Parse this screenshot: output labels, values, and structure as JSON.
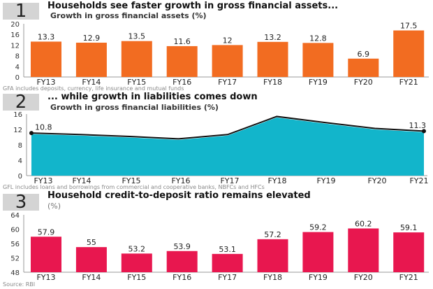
{
  "chart_data": [
    {
      "type": "bar",
      "panel_number": "1",
      "title": "Households see faster growth in gross financial assets...",
      "subtitle": "Growth in gross financial assets (%)",
      "categories": [
        "FY13",
        "FY14",
        "FY15",
        "FY16",
        "FY17",
        "FY18",
        "FY19",
        "FY20",
        "FY21"
      ],
      "values": [
        13.3,
        12.9,
        13.5,
        11.6,
        12,
        13.2,
        12.8,
        6.9,
        17.5
      ],
      "value_labels": [
        "13.3",
        "12.9",
        "13.5",
        "11.6",
        "12",
        "13.2",
        "12.8",
        "6.9",
        "17.5"
      ],
      "ylim": [
        0,
        20
      ],
      "yticks": [
        "0",
        "4",
        "8",
        "12",
        "16",
        "20"
      ],
      "grid": false,
      "color": "#f26c21",
      "note": "GFA includes deposits, currency, life insurance and mutual funds"
    },
    {
      "type": "area",
      "panel_number": "2",
      "title": "... while growth in liabilities comes down",
      "subtitle": "Growth in gross financial liabilities (%)",
      "categories": [
        "FY13",
        "FY14",
        "FY15",
        "FY16",
        "FY17",
        "FY18",
        "FY19",
        "FY20",
        "FY21"
      ],
      "values": [
        10.8,
        10.4,
        9.9,
        9.3,
        10.4,
        15.1,
        13.5,
        12.0,
        11.3
      ],
      "value_labels": {
        "first": "10.8",
        "last": "11.3"
      },
      "ylim": [
        0,
        16
      ],
      "yticks": [
        "0",
        "4",
        "8",
        "12",
        "16"
      ],
      "grid": false,
      "color": "#12b5cb",
      "line_color": "#111111",
      "note": "GFL includes loans and borrowings from commercial and cooperative banks, NBFCs and HFCs"
    },
    {
      "type": "bar",
      "panel_number": "3",
      "title": "Household credit-to-deposit ratio remains elevated",
      "subtitle": "(%)",
      "categories": [
        "FY13",
        "FY14",
        "FY15",
        "FY16",
        "FY17",
        "FY18",
        "FY19",
        "FY20",
        "FY21"
      ],
      "values": [
        57.9,
        55,
        53.2,
        53.9,
        53.1,
        57.2,
        59.2,
        60.2,
        59.1
      ],
      "value_labels": [
        "57.9",
        "55",
        "53.2",
        "53.9",
        "53.1",
        "57.2",
        "59.2",
        "60.2",
        "59.1"
      ],
      "ylim": [
        48,
        64
      ],
      "yticks": [
        "48",
        "52",
        "56",
        "60",
        "64"
      ],
      "grid": false,
      "color": "#e8174f",
      "note": "Source: RBI"
    }
  ]
}
